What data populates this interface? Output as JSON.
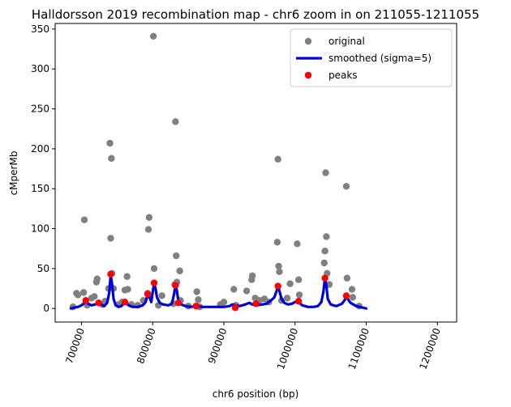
{
  "chart_data": {
    "type": "scatter",
    "title": "Halldorsson 2019 recombination map - chr6 zoom in on 211055-1211055",
    "xlabel": "chr6 position (bp)",
    "ylabel": "cMperMb",
    "xlim": [
      663000,
      1227000
    ],
    "ylim": [
      -17,
      357
    ],
    "grid": false,
    "legend_placement": "top-right",
    "x_ticks": [
      {
        "value": 700000,
        "label": "700000"
      },
      {
        "value": 800000,
        "label": "800000"
      },
      {
        "value": 900000,
        "label": "900000"
      },
      {
        "value": 1000000,
        "label": "1000000"
      },
      {
        "value": 1100000,
        "label": "1100000"
      },
      {
        "value": 1200000,
        "label": "1200000"
      }
    ],
    "x_tick_rotation": 70,
    "y_ticks": [
      {
        "value": 0,
        "label": "0"
      },
      {
        "value": 50,
        "label": "50"
      },
      {
        "value": 100,
        "label": "100"
      },
      {
        "value": 150,
        "label": "150"
      },
      {
        "value": 200,
        "label": "200"
      },
      {
        "value": 250,
        "label": "250"
      },
      {
        "value": 300,
        "label": "300"
      },
      {
        "value": 350,
        "label": "350"
      }
    ],
    "colors": {
      "original": "#808080",
      "smoothed": "#0000dd",
      "peaks": "#ff0000"
    },
    "legend": [
      {
        "label": "original",
        "marker": "dot",
        "color": "#808080"
      },
      {
        "label": "smoothed (sigma=5)",
        "marker": "line",
        "color": "#0000dd"
      },
      {
        "label": "peaks",
        "marker": "dot",
        "color": "#ff0000"
      }
    ],
    "series": [
      {
        "name": "original",
        "kind": "scatter",
        "points": [
          [
            688000,
            2
          ],
          [
            693000,
            19
          ],
          [
            695000,
            17
          ],
          [
            703000,
            20
          ],
          [
            704000,
            111
          ],
          [
            708000,
            4
          ],
          [
            714000,
            13
          ],
          [
            718000,
            15
          ],
          [
            721000,
            33
          ],
          [
            722000,
            37
          ],
          [
            729000,
            5
          ],
          [
            733000,
            9
          ],
          [
            738000,
            25
          ],
          [
            740000,
            207
          ],
          [
            741000,
            88
          ],
          [
            742000,
            188
          ],
          [
            743000,
            44
          ],
          [
            745000,
            25
          ],
          [
            752000,
            5
          ],
          [
            757000,
            8
          ],
          [
            761000,
            23
          ],
          [
            764000,
            40
          ],
          [
            765000,
            24
          ],
          [
            770000,
            5
          ],
          [
            779000,
            4
          ],
          [
            787000,
            10
          ],
          [
            793000,
            19
          ],
          [
            794000,
            99
          ],
          [
            795000,
            114
          ],
          [
            801000,
            341
          ],
          [
            802000,
            50
          ],
          [
            808000,
            4
          ],
          [
            813000,
            16
          ],
          [
            829000,
            6
          ],
          [
            831000,
            30
          ],
          [
            832000,
            234
          ],
          [
            833000,
            66
          ],
          [
            834000,
            33
          ],
          [
            838000,
            47
          ],
          [
            839000,
            10
          ],
          [
            850000,
            3
          ],
          [
            862000,
            21
          ],
          [
            864000,
            11
          ],
          [
            866000,
            2
          ],
          [
            895000,
            5
          ],
          [
            900000,
            8
          ],
          [
            914000,
            24
          ],
          [
            917000,
            4
          ],
          [
            932000,
            22
          ],
          [
            939000,
            36
          ],
          [
            940000,
            41
          ],
          [
            944000,
            13
          ],
          [
            950000,
            10
          ],
          [
            957000,
            12
          ],
          [
            963000,
            8
          ],
          [
            975000,
            83
          ],
          [
            976000,
            187
          ],
          [
            977000,
            53
          ],
          [
            978000,
            46
          ],
          [
            981000,
            10
          ],
          [
            989000,
            13
          ],
          [
            993000,
            31
          ],
          [
            1003000,
            81
          ],
          [
            1005000,
            36
          ],
          [
            1006000,
            17
          ],
          [
            1041000,
            57
          ],
          [
            1042000,
            72
          ],
          [
            1043000,
            170
          ],
          [
            1044000,
            90
          ],
          [
            1045000,
            44
          ],
          [
            1048000,
            30
          ],
          [
            1072000,
            153
          ],
          [
            1073000,
            38
          ],
          [
            1080000,
            24
          ],
          [
            1081000,
            14
          ],
          [
            1090000,
            3
          ]
        ]
      },
      {
        "name": "smoothed (sigma=5)",
        "kind": "line",
        "points": [
          [
            685000,
            0
          ],
          [
            690000,
            1
          ],
          [
            695000,
            2
          ],
          [
            700000,
            4
          ],
          [
            703000,
            6
          ],
          [
            706000,
            10
          ],
          [
            709000,
            6
          ],
          [
            714000,
            4
          ],
          [
            719000,
            5
          ],
          [
            724000,
            7
          ],
          [
            728000,
            5
          ],
          [
            732000,
            3
          ],
          [
            736000,
            7
          ],
          [
            739000,
            20
          ],
          [
            741000,
            42
          ],
          [
            743000,
            30
          ],
          [
            745000,
            12
          ],
          [
            748000,
            4
          ],
          [
            752000,
            2
          ],
          [
            756000,
            3
          ],
          [
            759000,
            6
          ],
          [
            761000,
            8
          ],
          [
            763000,
            7
          ],
          [
            766000,
            4
          ],
          [
            772000,
            2
          ],
          [
            780000,
            2
          ],
          [
            786000,
            4
          ],
          [
            790000,
            8
          ],
          [
            793000,
            17
          ],
          [
            795000,
            15
          ],
          [
            798000,
            8
          ],
          [
            800000,
            20
          ],
          [
            802000,
            32
          ],
          [
            804000,
            25
          ],
          [
            806000,
            14
          ],
          [
            810000,
            7
          ],
          [
            815000,
            5
          ],
          [
            822000,
            4
          ],
          [
            827000,
            6
          ],
          [
            830000,
            18
          ],
          [
            832000,
            30
          ],
          [
            834000,
            22
          ],
          [
            836000,
            10
          ],
          [
            840000,
            5
          ],
          [
            846000,
            3
          ],
          [
            853000,
            2
          ],
          [
            862000,
            3
          ],
          [
            870000,
            2
          ],
          [
            880000,
            2
          ],
          [
            890000,
            2
          ],
          [
            900000,
            2
          ],
          [
            908000,
            3
          ],
          [
            912000,
            5
          ],
          [
            916000,
            4
          ],
          [
            922000,
            3
          ],
          [
            930000,
            5
          ],
          [
            936000,
            7
          ],
          [
            940000,
            5
          ],
          [
            946000,
            4
          ],
          [
            954000,
            5
          ],
          [
            960000,
            6
          ],
          [
            966000,
            10
          ],
          [
            971000,
            14
          ],
          [
            974000,
            22
          ],
          [
            976000,
            29
          ],
          [
            978000,
            22
          ],
          [
            981000,
            12
          ],
          [
            985000,
            7
          ],
          [
            990000,
            5
          ],
          [
            996000,
            6
          ],
          [
            1002000,
            9
          ],
          [
            1005000,
            8
          ],
          [
            1010000,
            4
          ],
          [
            1018000,
            2
          ],
          [
            1026000,
            2
          ],
          [
            1032000,
            3
          ],
          [
            1037000,
            8
          ],
          [
            1040000,
            22
          ],
          [
            1042000,
            38
          ],
          [
            1044000,
            28
          ],
          [
            1046000,
            12
          ],
          [
            1050000,
            5
          ],
          [
            1058000,
            3
          ],
          [
            1066000,
            6
          ],
          [
            1070000,
            11
          ],
          [
            1072000,
            16
          ],
          [
            1074000,
            12
          ],
          [
            1078000,
            7
          ],
          [
            1082000,
            5
          ],
          [
            1086000,
            3
          ],
          [
            1090000,
            2
          ],
          [
            1095000,
            1
          ],
          [
            1100000,
            0
          ]
        ]
      },
      {
        "name": "peaks",
        "kind": "scatter",
        "points": [
          [
            706000,
            10
          ],
          [
            724000,
            7
          ],
          [
            741000,
            43
          ],
          [
            761000,
            8
          ],
          [
            793000,
            18
          ],
          [
            802000,
            32
          ],
          [
            832000,
            29
          ],
          [
            836000,
            7
          ],
          [
            861000,
            3
          ],
          [
            916000,
            1
          ],
          [
            945000,
            6
          ],
          [
            976000,
            28
          ],
          [
            1005000,
            9
          ],
          [
            1042000,
            38
          ],
          [
            1072000,
            16
          ]
        ]
      }
    ]
  }
}
